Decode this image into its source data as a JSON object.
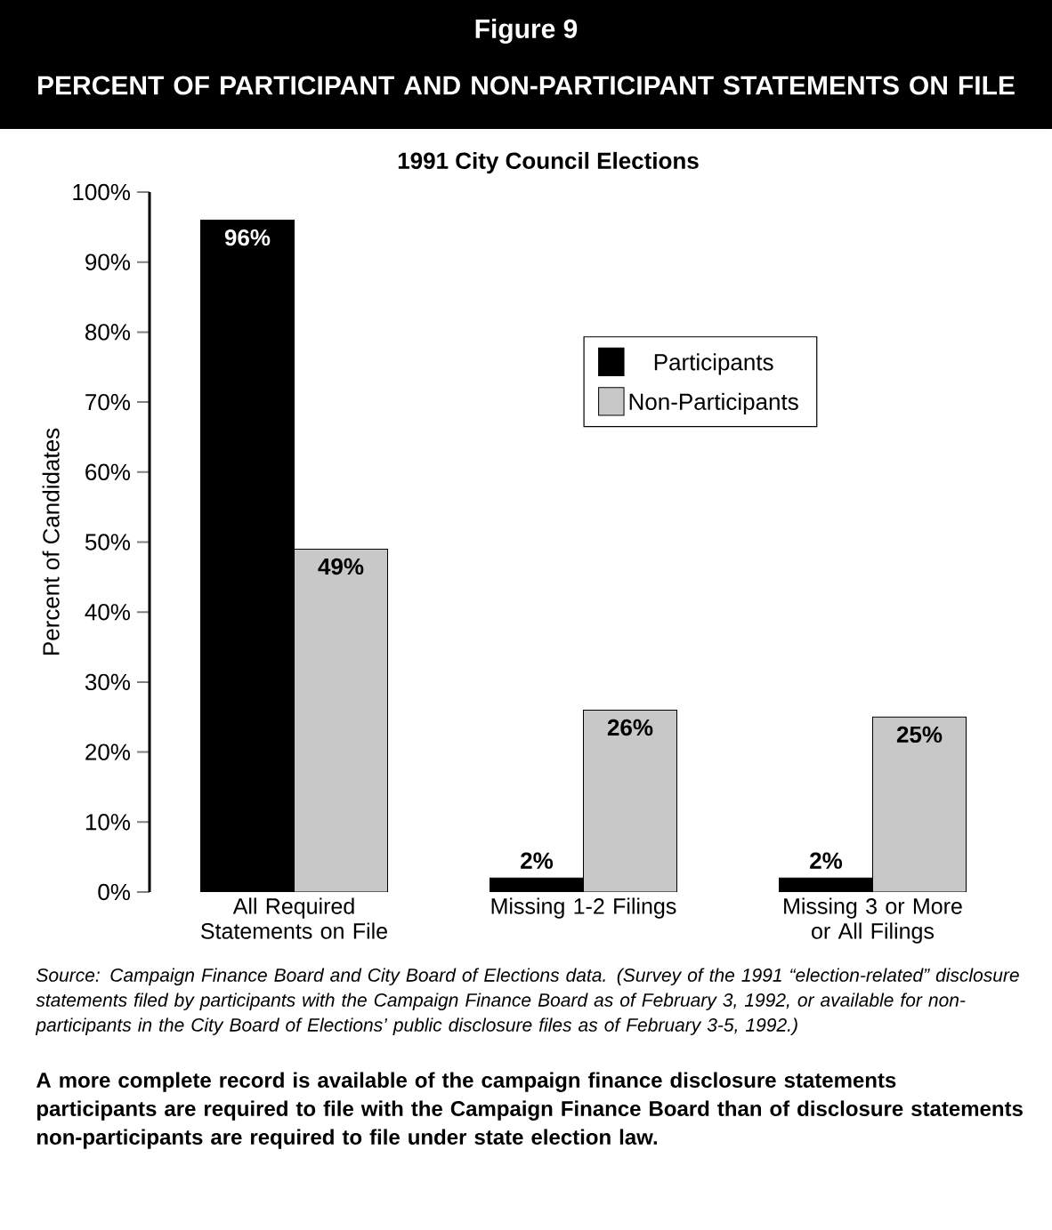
{
  "chart_data": {
    "type": "bar",
    "title": "Figure 9",
    "subtitle": "PERCENT OF PARTICIPANT AND NON-PARTICIPANT STATEMENTS ON FILE",
    "categories": [
      "All Required Statements on File",
      "Missing 1-2 Filings",
      "Missing 3 or More or All Filings"
    ],
    "series": [
      {
        "name": "Participants",
        "color": "#000000",
        "values": [
          96,
          2,
          2
        ],
        "value_labels": [
          "96%",
          "2%",
          "2%"
        ]
      },
      {
        "name": "Non-Participants",
        "color": "#c8c8c8",
        "values": [
          49,
          26,
          25
        ],
        "value_labels": [
          "49%",
          "26%",
          "25%"
        ]
      }
    ],
    "ylabel": "Percent of Candidates",
    "ylim": [
      0,
      100
    ],
    "yticks": [
      {
        "value": 0,
        "label": "0%"
      },
      {
        "value": 10,
        "label": "10%"
      },
      {
        "value": 20,
        "label": "20%"
      },
      {
        "value": 30,
        "label": "30%"
      },
      {
        "value": 40,
        "label": "40%"
      },
      {
        "value": 50,
        "label": "50%"
      },
      {
        "value": 60,
        "label": "60%"
      },
      {
        "value": 70,
        "label": "70%"
      },
      {
        "value": 80,
        "label": "80%"
      },
      {
        "value": 90,
        "label": "90%"
      },
      {
        "value": 100,
        "label": "100%"
      }
    ],
    "legend": "top right",
    "annotations": [
      "1991 City Council Elections",
      "Source: Campaign Finance Board and City Board of Elections data. (Survey of the 1991 “election-related” disclosure statements filed by participants with the Campaign Finance Board as of February 3, 1992, or available for non-participants in the City Board of Elections’ public disclosure files as of February 3-5, 1992.)",
      "A more complete record is available of the campaign finance disclosure statements participants are required to file with the Campaign Finance Board than of disclosure statements non-participants are required to file under state election law."
    ]
  }
}
